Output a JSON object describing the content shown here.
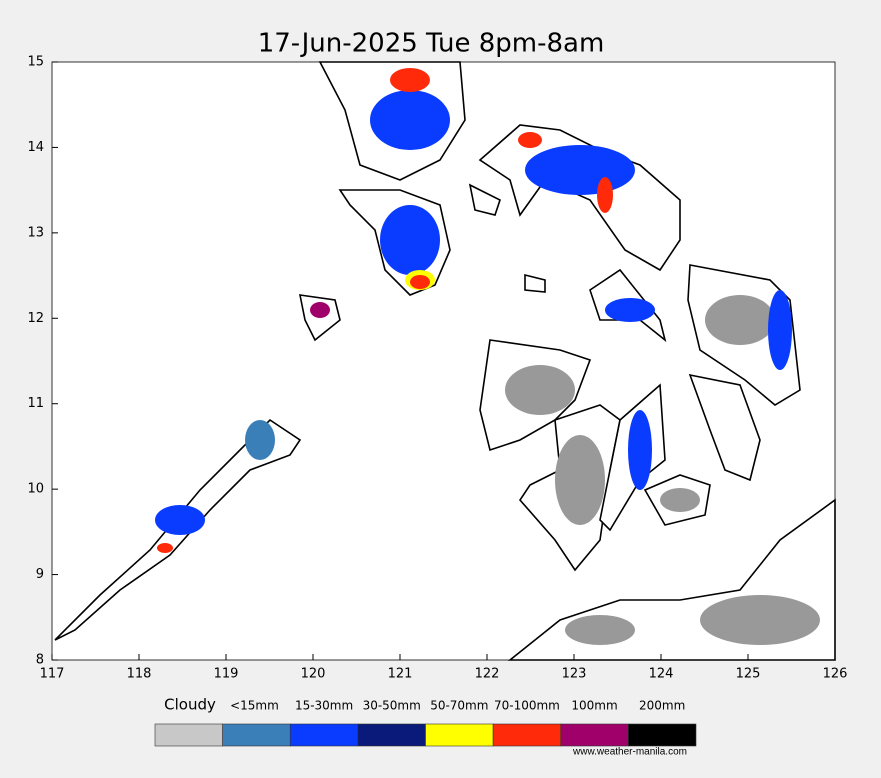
{
  "map": {
    "title": "17-Jun-2025 Tue 8pm-8am",
    "xlim": [
      117,
      126
    ],
    "ylim": [
      8,
      15
    ],
    "xticks": [
      117,
      118,
      119,
      120,
      121,
      122,
      123,
      124,
      125,
      126
    ],
    "yticks": [
      8,
      9,
      10,
      11,
      12,
      13,
      14,
      15
    ]
  },
  "legend": {
    "items": [
      {
        "label": "Cloudy",
        "color": "#c8c8c8"
      },
      {
        "label": "<15mm",
        "color": "#3a7fb8"
      },
      {
        "label": "15-30mm",
        "color": "#0a3cff"
      },
      {
        "label": "30-50mm",
        "color": "#0a1a7a"
      },
      {
        "label": "50-70mm",
        "color": "#ffff00"
      },
      {
        "label": "70-100mm",
        "color": "#ff2a0a"
      },
      {
        "label": "100mm",
        "color": "#a0006a"
      },
      {
        "label": "200mm",
        "color": "#000000"
      }
    ]
  },
  "credit": "www.weather-manila.com"
}
